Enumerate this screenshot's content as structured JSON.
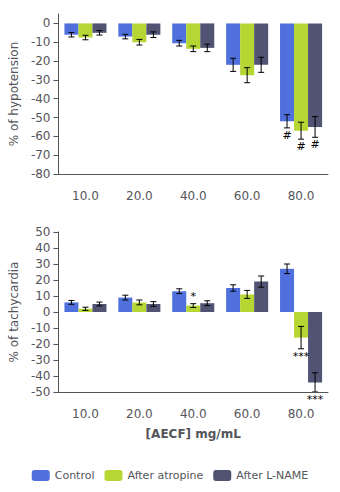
{
  "chart_data": [
    {
      "type": "bar",
      "categories": [
        "10.0",
        "20.0",
        "40.0",
        "60.0",
        "80.0"
      ],
      "ylabel": "% of hypotension",
      "ylim": [
        -80,
        5
      ],
      "yticks": [
        0,
        -10,
        -20,
        -30,
        -40,
        -50,
        -60,
        -70,
        -80
      ],
      "grid": false,
      "series": [
        {
          "name": "Control",
          "values": [
            -6.0,
            -7.0,
            -10.5,
            -22.0,
            -52.0
          ],
          "errors": [
            1.2,
            1.2,
            1.5,
            3.5,
            3.5
          ]
        },
        {
          "name": "After atropine",
          "values": [
            -7.5,
            -10.0,
            -13.5,
            -27.5,
            -57.0
          ],
          "errors": [
            1.2,
            1.5,
            1.5,
            4.0,
            4.5
          ]
        },
        {
          "name": "After L-NAME",
          "values": [
            -5.0,
            -6.0,
            -13.0,
            -22.0,
            -55.0
          ],
          "errors": [
            1.2,
            1.5,
            2.0,
            4.0,
            5.5
          ]
        }
      ],
      "annotations": [
        {
          "text": "#",
          "category": "80.0",
          "series": "Control"
        },
        {
          "text": "#",
          "category": "80.0",
          "series": "After atropine"
        },
        {
          "text": "#",
          "category": "80.0",
          "series": "After L-NAME"
        }
      ]
    },
    {
      "type": "bar",
      "categories": [
        "10.0",
        "20.0",
        "40.0",
        "60.0",
        "80.0"
      ],
      "xlabel": "[AECF] mg/mL",
      "ylabel": "% of tachycardia",
      "ylim": [
        -50,
        50
      ],
      "yticks": [
        -50,
        -40,
        -30,
        -20,
        -10,
        0,
        10,
        20,
        30,
        40,
        50
      ],
      "grid": false,
      "legend": "bottom",
      "series": [
        {
          "name": "Control",
          "values": [
            6.0,
            9.0,
            13.0,
            15.0,
            27.0
          ],
          "errors": [
            1.2,
            1.5,
            1.5,
            2.0,
            3.0
          ]
        },
        {
          "name": "After atropine",
          "values": [
            2.0,
            6.0,
            4.0,
            11.0,
            -16.0
          ],
          "errors": [
            1.0,
            1.5,
            1.2,
            2.5,
            7.0
          ]
        },
        {
          "name": "After L-NAME",
          "values": [
            5.0,
            5.0,
            5.5,
            19.0,
            -44.0
          ],
          "errors": [
            1.2,
            1.5,
            1.5,
            3.5,
            6.0
          ]
        }
      ],
      "annotations": [
        {
          "text": "*",
          "category": "40.0",
          "series": "After atropine"
        },
        {
          "text": "***",
          "category": "80.0",
          "series": "After atropine"
        },
        {
          "text": "***",
          "category": "80.0",
          "series": "After L-NAME"
        }
      ]
    }
  ]
}
